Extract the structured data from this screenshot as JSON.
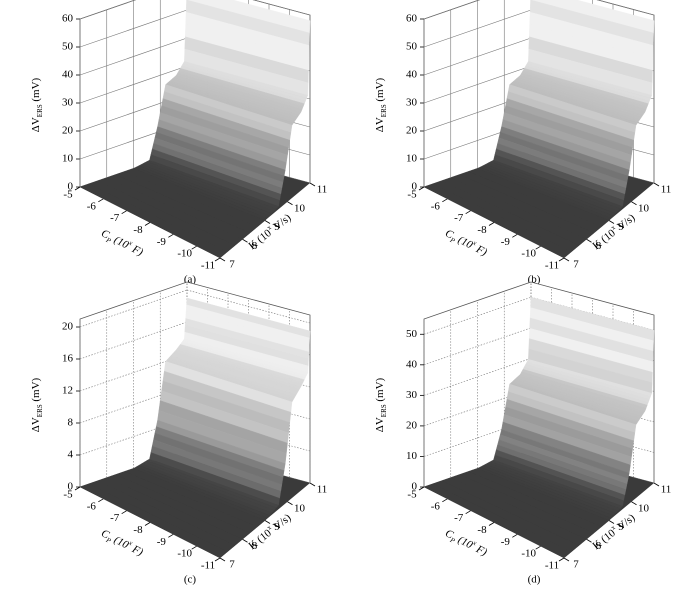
{
  "chart_data": [
    {
      "type": "surface",
      "caption": "(a)",
      "x": [
        7,
        9,
        9.6,
        9.9,
        10.2,
        10.6,
        10.9,
        11
      ],
      "values": [
        0,
        0,
        1,
        12,
        26,
        28,
        32,
        58
      ],
      "zlim": [
        0,
        60
      ],
      "zticks": [
        0,
        10,
        20,
        30,
        40,
        50,
        60
      ],
      "cpticks": [
        -5,
        -6,
        -7,
        -8,
        -9,
        -10,
        -11
      ],
      "kticks": [
        7,
        8,
        9,
        10,
        11
      ],
      "zlabel": [
        "ΔV",
        "ERS",
        " (mV)"
      ],
      "cplabel": [
        "C",
        "P",
        " (10",
        "x",
        " F)"
      ],
      "klabel": [
        "K",
        " (10",
        "x",
        " V/s)"
      ],
      "grid": "solid"
    },
    {
      "type": "surface",
      "caption": "(b)",
      "x": [
        7,
        9,
        9.6,
        9.9,
        10.2,
        10.6,
        10.9,
        11
      ],
      "values": [
        0,
        0,
        1,
        12,
        26,
        28,
        32,
        58
      ],
      "zlim": [
        0,
        60
      ],
      "zticks": [
        0,
        10,
        20,
        30,
        40,
        50,
        60
      ],
      "cpticks": [
        -5,
        -6,
        -7,
        -8,
        -9,
        -10,
        -11
      ],
      "kticks": [
        7,
        8,
        9,
        10,
        11
      ],
      "zlabel": [
        "ΔV",
        "ERS",
        " (mV)"
      ],
      "cplabel": [
        "C",
        "P",
        " (10",
        "x",
        " F)"
      ],
      "klabel": [
        "K",
        " (10",
        "x",
        " V/s)"
      ],
      "grid": "solid"
    },
    {
      "type": "surface",
      "caption": "(c)",
      "x": [
        7,
        9,
        9.6,
        9.9,
        10.2,
        10.6,
        10.9,
        11
      ],
      "values": [
        0,
        0,
        0.5,
        5,
        12,
        13,
        14,
        19
      ],
      "zlim": [
        0,
        21
      ],
      "zticks": [
        0,
        4,
        8,
        12,
        16,
        20
      ],
      "cpticks": [
        -5,
        -6,
        -7,
        -8,
        -9,
        -10,
        -11
      ],
      "kticks": [
        7,
        8,
        9,
        10,
        11
      ],
      "zlabel": [
        "ΔV",
        "ERS",
        " (mV)"
      ],
      "cplabel": [
        "C",
        "P",
        " (10",
        "x",
        " F)"
      ],
      "klabel": [
        "K",
        " (10",
        "x",
        " V/s)"
      ],
      "grid": "dotted"
    },
    {
      "type": "surface",
      "caption": "(d)",
      "x": [
        7,
        9,
        9.6,
        9.9,
        10.2,
        10.6,
        10.9,
        11
      ],
      "values": [
        0,
        0,
        1,
        10,
        24,
        26,
        30,
        50
      ],
      "zlim": [
        0,
        55
      ],
      "zticks": [
        0,
        10,
        20,
        30,
        40,
        50
      ],
      "cpticks": [
        -5,
        -6,
        -7,
        -8,
        -9,
        -10,
        -11
      ],
      "kticks": [
        7,
        8,
        9,
        10,
        11
      ],
      "zlabel": [
        "ΔV",
        "ERS",
        " (mV)"
      ],
      "cplabel": [
        "C",
        "P",
        " (10",
        "x",
        " F)"
      ],
      "klabel": [
        "K",
        " (10",
        "x",
        " V/s)"
      ],
      "grid": "dotted"
    }
  ]
}
